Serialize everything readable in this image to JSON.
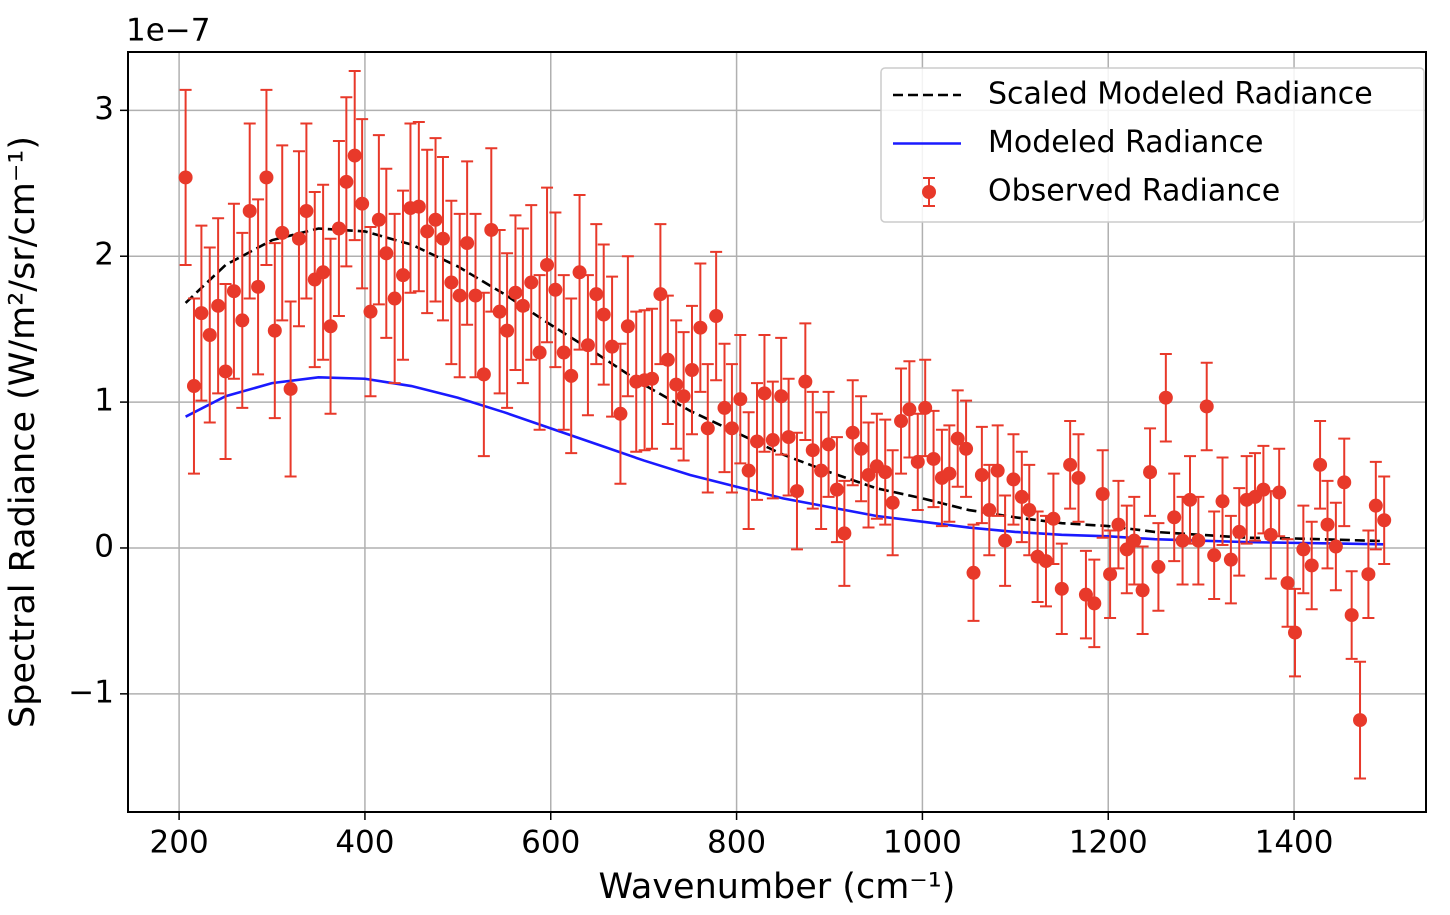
{
  "chart_data": {
    "type": "line",
    "x_label": "Wavenumber (cm⁻¹)",
    "y_label": "Spectral Radiance (W/m²/sr/cm⁻¹)",
    "y_offset_text": "1e−7",
    "xlim": [
      145,
      1542
    ],
    "ylim": [
      -1.81,
      3.4
    ],
    "xticks": [
      200,
      400,
      600,
      800,
      1000,
      1200,
      1400
    ],
    "yticks": [
      {
        "value": -1,
        "label": "−1"
      },
      0,
      1,
      2,
      3
    ],
    "grid": true,
    "legend": "upper right",
    "series": [
      {
        "name": "Scaled Modeled Radiance",
        "type": "line",
        "style": "dashed",
        "color": "#000000",
        "x": [
          207,
          250,
          300,
          350,
          400,
          450,
          500,
          550,
          600,
          650,
          700,
          750,
          800,
          850,
          900,
          950,
          1000,
          1050,
          1100,
          1150,
          1200,
          1250,
          1300,
          1350,
          1400,
          1450,
          1496
        ],
        "values": [
          1.68,
          1.94,
          2.11,
          2.19,
          2.17,
          2.08,
          1.93,
          1.74,
          1.53,
          1.33,
          1.12,
          0.94,
          0.79,
          0.64,
          0.52,
          0.41,
          0.34,
          0.26,
          0.21,
          0.17,
          0.15,
          0.11,
          0.09,
          0.07,
          0.065,
          0.056,
          0.047
        ]
      },
      {
        "name": "Modeled Radiance",
        "type": "line",
        "style": "solid",
        "color": "#1a1aff",
        "x": [
          207,
          250,
          300,
          350,
          400,
          450,
          500,
          550,
          600,
          650,
          700,
          750,
          800,
          850,
          900,
          950,
          1000,
          1050,
          1100,
          1150,
          1200,
          1250,
          1300,
          1350,
          1400,
          1450,
          1496
        ],
        "values": [
          0.9,
          1.04,
          1.13,
          1.17,
          1.16,
          1.11,
          1.03,
          0.93,
          0.82,
          0.71,
          0.6,
          0.5,
          0.42,
          0.34,
          0.28,
          0.22,
          0.18,
          0.14,
          0.11,
          0.09,
          0.08,
          0.06,
          0.05,
          0.04,
          0.035,
          0.03,
          0.025
        ]
      },
      {
        "name": "Observed Radiance",
        "type": "errorbar",
        "color": "#e8392a",
        "x": [
          207,
          216,
          224,
          233,
          242,
          250,
          259,
          268,
          276,
          285,
          294,
          303,
          311,
          320,
          329,
          337,
          346,
          355,
          363,
          372,
          380,
          389,
          397,
          406,
          415,
          423,
          432,
          441,
          449,
          458,
          467,
          476,
          484,
          493,
          502,
          510,
          519,
          528,
          536,
          545,
          553,
          562,
          570,
          579,
          588,
          596,
          605,
          614,
          622,
          631,
          640,
          649,
          657,
          666,
          675,
          683,
          692,
          701,
          709,
          718,
          726,
          735,
          743,
          752,
          761,
          769,
          778,
          787,
          795,
          804,
          813,
          822,
          830,
          839,
          848,
          856,
          865,
          874,
          882,
          891,
          899,
          908,
          916,
          925,
          934,
          942,
          951,
          960,
          968,
          977,
          986,
          995,
          1003,
          1012,
          1021,
          1029,
          1038,
          1047,
          1055,
          1064,
          1072,
          1081,
          1089,
          1098,
          1107,
          1115,
          1124,
          1133,
          1141,
          1150,
          1159,
          1168,
          1176,
          1185,
          1194,
          1202,
          1211,
          1220,
          1228,
          1237,
          1245,
          1254,
          1262,
          1271,
          1280,
          1288,
          1297,
          1306,
          1314,
          1323,
          1332,
          1341,
          1349,
          1358,
          1367,
          1375,
          1384,
          1393,
          1401,
          1410,
          1419,
          1428,
          1436,
          1445,
          1454,
          1462,
          1471,
          1480,
          1488,
          1497
        ],
        "values": [
          2.54,
          1.11,
          1.61,
          1.46,
          1.66,
          1.21,
          1.76,
          1.56,
          2.31,
          1.79,
          2.54,
          1.49,
          2.16,
          1.09,
          2.12,
          2.31,
          1.84,
          1.89,
          1.52,
          2.19,
          2.51,
          2.69,
          2.36,
          1.62,
          2.25,
          2.02,
          1.71,
          1.87,
          2.33,
          2.34,
          2.17,
          2.25,
          2.12,
          1.82,
          1.73,
          2.09,
          1.73,
          1.19,
          2.18,
          1.62,
          1.49,
          1.75,
          1.66,
          1.82,
          1.34,
          1.94,
          1.77,
          1.34,
          1.18,
          1.89,
          1.39,
          1.74,
          1.6,
          1.38,
          0.92,
          1.52,
          1.14,
          1.15,
          1.16,
          1.74,
          1.29,
          1.12,
          1.04,
          1.22,
          1.51,
          0.82,
          1.59,
          0.96,
          0.82,
          1.02,
          0.53,
          0.73,
          1.06,
          0.74,
          1.04,
          0.76,
          0.39,
          1.14,
          0.67,
          0.53,
          0.71,
          0.4,
          0.1,
          0.79,
          0.68,
          0.5,
          0.56,
          0.52,
          0.31,
          0.87,
          0.95,
          0.59,
          0.96,
          0.61,
          0.48,
          0.51,
          0.75,
          0.68,
          -0.17,
          0.5,
          0.26,
          0.53,
          0.05,
          0.47,
          0.35,
          0.26,
          -0.06,
          -0.09,
          0.2,
          -0.28,
          0.57,
          0.48,
          -0.32,
          -0.38,
          0.37,
          -0.18,
          0.16,
          -0.01,
          0.05,
          -0.29,
          0.52,
          -0.13,
          1.03,
          0.21,
          0.05,
          0.33,
          0.05,
          0.97,
          -0.05,
          0.32,
          -0.08,
          0.11,
          0.33,
          0.35,
          0.4,
          0.09,
          0.38,
          -0.24,
          -0.58,
          -0.01,
          -0.12,
          0.57,
          0.16,
          0.01,
          0.45,
          -0.46,
          -1.18,
          -0.18,
          0.29,
          0.19
        ],
        "errors": [
          0.6,
          0.6,
          0.6,
          0.6,
          0.6,
          0.6,
          0.6,
          0.6,
          0.6,
          0.6,
          0.6,
          0.6,
          0.6,
          0.6,
          0.6,
          0.6,
          0.6,
          0.6,
          0.6,
          0.6,
          0.58,
          0.58,
          0.58,
          0.58,
          0.58,
          0.58,
          0.58,
          0.58,
          0.58,
          0.58,
          0.56,
          0.56,
          0.56,
          0.56,
          0.56,
          0.56,
          0.56,
          0.56,
          0.56,
          0.56,
          0.53,
          0.53,
          0.53,
          0.53,
          0.53,
          0.53,
          0.53,
          0.53,
          0.53,
          0.53,
          0.48,
          0.48,
          0.48,
          0.48,
          0.48,
          0.48,
          0.48,
          0.48,
          0.48,
          0.48,
          0.44,
          0.44,
          0.44,
          0.44,
          0.44,
          0.44,
          0.44,
          0.44,
          0.44,
          0.44,
          0.4,
          0.4,
          0.4,
          0.4,
          0.4,
          0.4,
          0.4,
          0.4,
          0.4,
          0.4,
          0.36,
          0.36,
          0.36,
          0.36,
          0.36,
          0.36,
          0.36,
          0.36,
          0.36,
          0.36,
          0.33,
          0.33,
          0.33,
          0.33,
          0.33,
          0.33,
          0.33,
          0.33,
          0.33,
          0.33,
          0.31,
          0.31,
          0.31,
          0.31,
          0.31,
          0.31,
          0.31,
          0.31,
          0.31,
          0.31,
          0.3,
          0.3,
          0.3,
          0.3,
          0.3,
          0.3,
          0.3,
          0.3,
          0.3,
          0.3,
          0.3,
          0.3,
          0.3,
          0.3,
          0.3,
          0.3,
          0.3,
          0.3,
          0.3,
          0.3,
          0.3,
          0.3,
          0.3,
          0.3,
          0.3,
          0.3,
          0.3,
          0.3,
          0.3,
          0.3,
          0.3,
          0.3,
          0.3,
          0.3,
          0.3,
          0.3,
          0.4,
          0.3,
          0.3,
          0.3
        ]
      }
    ]
  }
}
